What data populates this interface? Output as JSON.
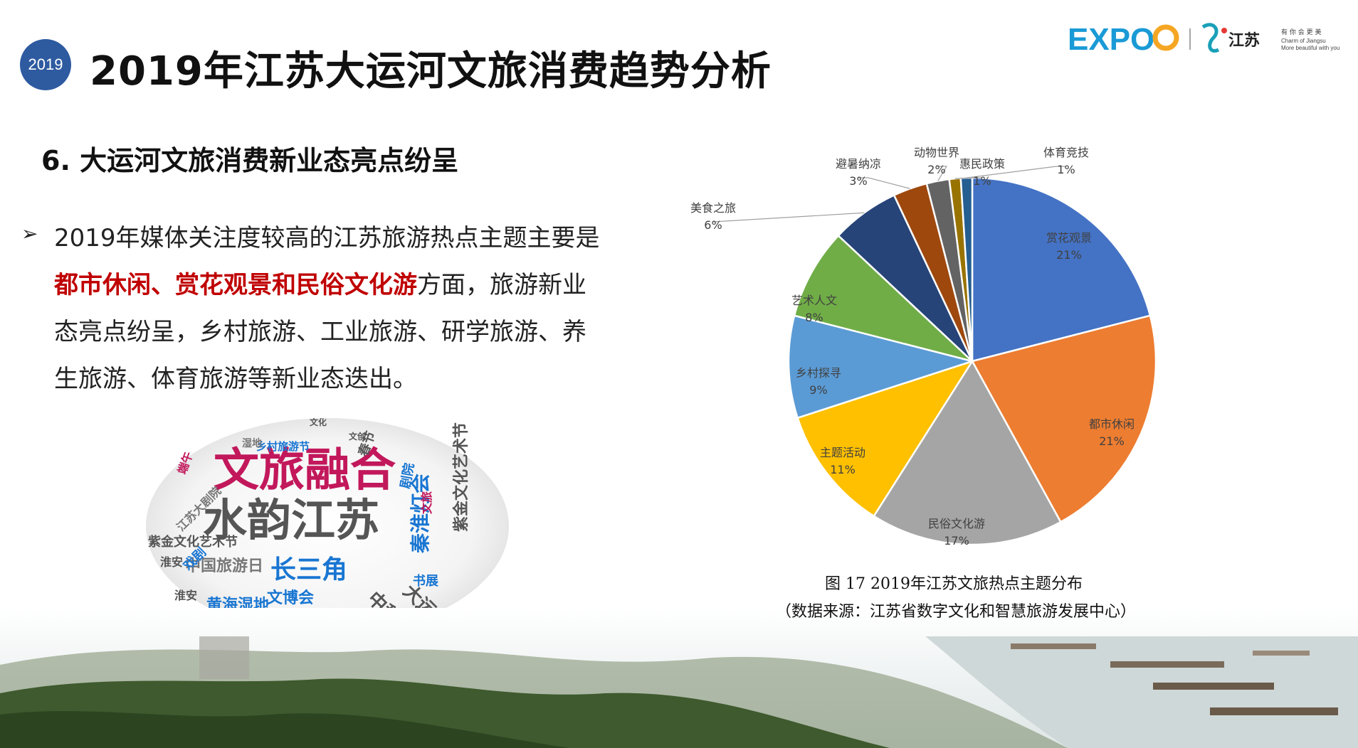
{
  "header": {
    "year_badge": "2019",
    "title": "2019年江苏大运河文旅消费趋势分析",
    "logo_expo": "EXPO",
    "logo_jiangsu": "江苏",
    "logo_tagline1": "有 你 会 更 美",
    "logo_tagline2": "Charm of Jiangsu",
    "logo_tagline3": "More beautiful with you"
  },
  "section": {
    "title": "6. 大运河文旅消费新业态亮点纷呈"
  },
  "paragraph": {
    "bullet": "➢",
    "part1": "2019年媒体关注度较高的江苏旅游热点主题主要是",
    "highlight": "都市休闲、赏花观景和民俗文化游",
    "part2": "方面，旅游新业态亮点纷呈，乡村旅游、工业旅游、研学旅游、养生旅游、体育旅游等新业态迭出。"
  },
  "wordcloud": {
    "words": [
      {
        "text": "文旅融合",
        "color": "#c2185b"
      },
      {
        "text": "水韵江苏",
        "color": "#555555"
      },
      {
        "text": "长三角",
        "color": "#1976d2"
      },
      {
        "text": "中国旅游日",
        "color": "#777777"
      },
      {
        "text": "秦淮灯会",
        "color": "#1976d2"
      },
      {
        "text": "紫金文化艺术节",
        "color": "#555555"
      },
      {
        "text": "大运河",
        "color": "#555555"
      },
      {
        "text": "中秋晚会",
        "color": "#555555"
      },
      {
        "text": "黄海湿地",
        "color": "#1976d2"
      },
      {
        "text": "文博会",
        "color": "#1976d2"
      },
      {
        "text": "文化旅游",
        "color": "#1976d2"
      },
      {
        "text": "乡村旅游节",
        "color": "#1976d2"
      },
      {
        "text": "江苏大剧院",
        "color": "#777777"
      },
      {
        "text": "紫金文化艺术节",
        "color": "#555555"
      },
      {
        "text": "戏剧",
        "color": "#1976d2"
      },
      {
        "text": "淮安",
        "color": "#555555"
      },
      {
        "text": "淮安",
        "color": "#555555"
      },
      {
        "text": "端午",
        "color": "#c2185b"
      },
      {
        "text": "端午",
        "color": "#c2185b"
      },
      {
        "text": "湿地",
        "color": "#777777"
      },
      {
        "text": "湿地",
        "color": "#777777"
      },
      {
        "text": "春节",
        "color": "#555555"
      },
      {
        "text": "书展",
        "color": "#1976d2"
      },
      {
        "text": "剧院",
        "color": "#1976d2"
      },
      {
        "text": "文旅",
        "color": "#c2185b"
      },
      {
        "text": "文化",
        "color": "#555555"
      },
      {
        "text": "文创",
        "color": "#555555"
      }
    ]
  },
  "chart_data": {
    "type": "pie",
    "title": "图 17 2019年江苏文旅热点主题分布",
    "source": "（数据来源：江苏省数字文化和智慧旅游发展中心）",
    "slices": [
      {
        "label": "赏花观景",
        "value": 21,
        "value_label": "21%",
        "color": "#4472c4"
      },
      {
        "label": "都市休闲",
        "value": 21,
        "value_label": "21%",
        "color": "#ed7d31"
      },
      {
        "label": "民俗文化游",
        "value": 17,
        "value_label": "17%",
        "color": "#a5a5a5"
      },
      {
        "label": "主题活动",
        "value": 11,
        "value_label": "11%",
        "color": "#ffc000"
      },
      {
        "label": "乡村探寻",
        "value": 9,
        "value_label": "9%",
        "color": "#5b9bd5"
      },
      {
        "label": "艺术人文",
        "value": 8,
        "value_label": "8%",
        "color": "#70ad47"
      },
      {
        "label": "美食之旅",
        "value": 6,
        "value_label": "6%",
        "color": "#264478"
      },
      {
        "label": "避暑纳凉",
        "value": 3,
        "value_label": "3%",
        "color": "#9e480e"
      },
      {
        "label": "动物世界",
        "value": 2,
        "value_label": "2%",
        "color": "#636363"
      },
      {
        "label": "惠民政策",
        "value": 1,
        "value_label": "1%",
        "color": "#997300"
      },
      {
        "label": "体育竞技",
        "value": 1,
        "value_label": "1%",
        "color": "#255e91"
      }
    ]
  }
}
